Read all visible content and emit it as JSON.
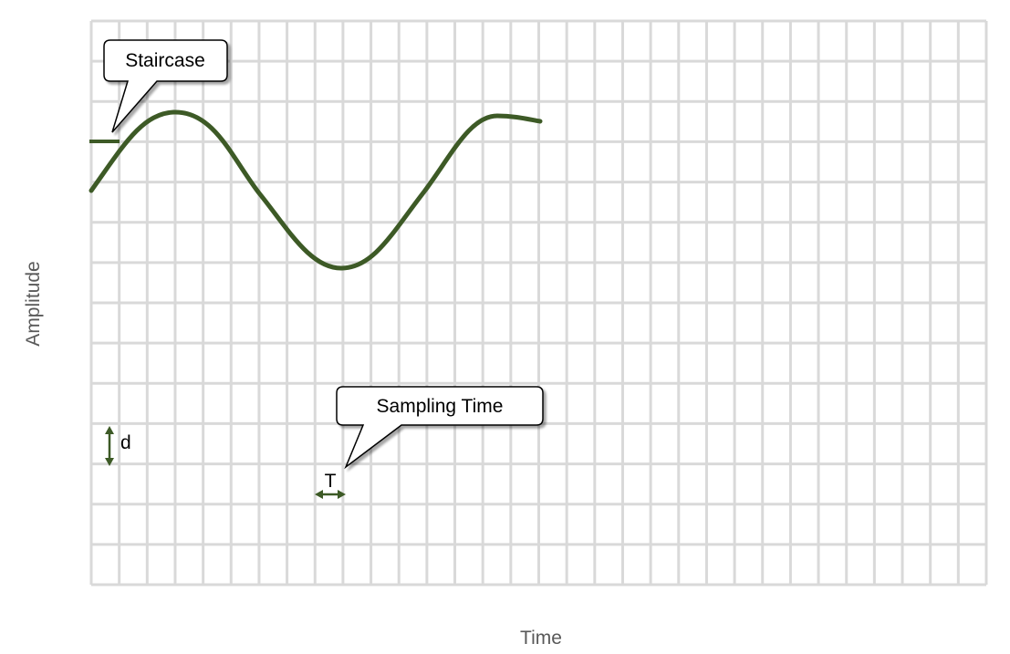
{
  "labels": {
    "y_axis": "Amplitude",
    "x_axis": "Time",
    "d_marker": "d",
    "t_marker": "T"
  },
  "callouts": {
    "staircase": "Staircase",
    "sampling_time": "Sampling Time"
  },
  "colors": {
    "grid": "#d9d9d9",
    "signal": "#3d5a26",
    "axis_label": "#595959",
    "callout_border": "#000000",
    "callout_fill": "#ffffff"
  }
}
